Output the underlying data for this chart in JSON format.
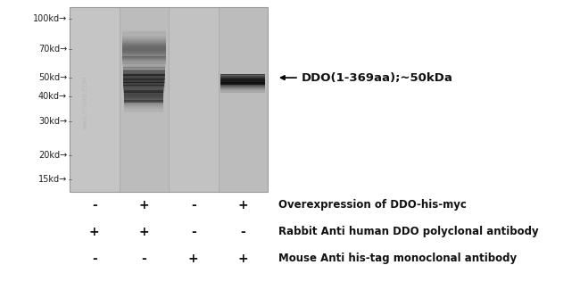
{
  "background_color": "#ffffff",
  "gel_bg_light": "#c8c8c8",
  "gel_bg_dark": "#bbbbbb",
  "num_lanes": 4,
  "marker_labels": [
    "100kd→",
    "70kd→",
    "50kd→",
    "40kd→",
    "30kd→",
    "20kd→",
    "15kd→"
  ],
  "marker_mws": [
    100,
    70,
    50,
    40,
    30,
    20,
    15
  ],
  "mw_log_min": 1.1,
  "mw_log_max": 2.04,
  "annotation_text": "DDO(1-369aa);~50kDa",
  "annotation_mw": 50,
  "row1_label": "Overexpression of DDO-his-myc",
  "row1_signs": [
    "-",
    "+",
    "-",
    "+"
  ],
  "row2_label": "Rabbit Anti human DDO polyclonal antibody",
  "row2_signs": [
    "+",
    "+",
    "-",
    "-"
  ],
  "row3_label": "Mouse Anti his-tag monoclonal antibody",
  "row3_signs": [
    "-",
    "-",
    "+",
    "+"
  ],
  "watermark": "www.PTGAB.COM",
  "font_size_markers": 7,
  "font_size_annotation": 9.5,
  "font_size_table": 8.5,
  "font_size_signs": 10
}
